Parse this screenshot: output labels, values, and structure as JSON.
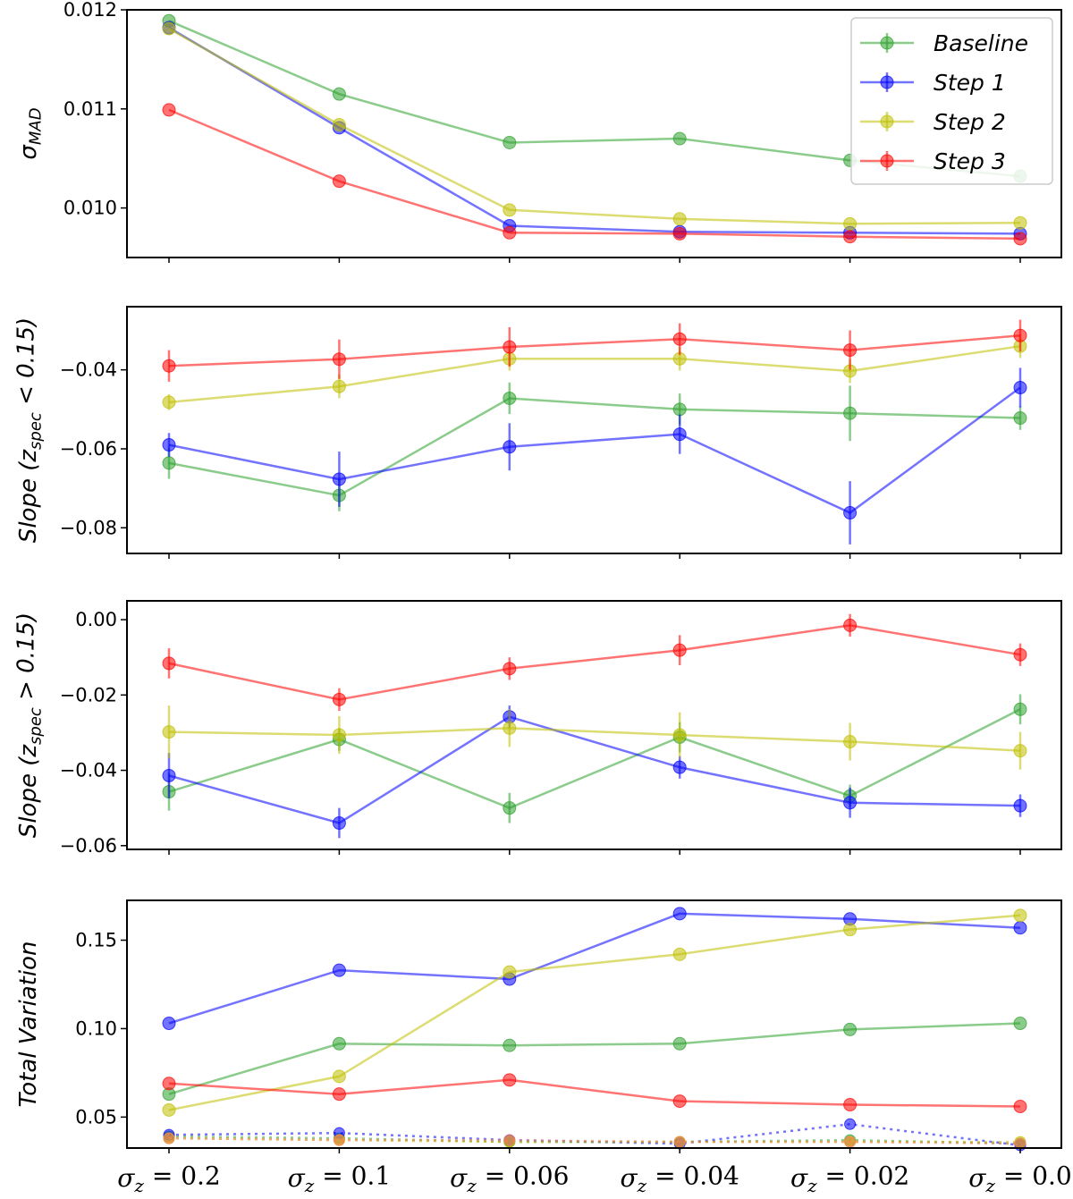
{
  "chart_data": [
    {
      "type": "line",
      "id": "sigma-mad",
      "ylabel": "σ_MAD",
      "ylim": [
        0.0095,
        0.012
      ],
      "yticks": [
        0.01,
        0.011,
        0.012
      ],
      "ytick_labels": [
        "0.010",
        "0.011",
        "0.012"
      ],
      "legend": {
        "position": "top-right",
        "entries": [
          "Baseline",
          "Step 1",
          "Step 2",
          "Step 3"
        ]
      },
      "series": [
        {
          "name": "Baseline",
          "color": "#2ca02c",
          "style": "solid",
          "values": [
            0.01189,
            0.01115,
            0.01066,
            0.0107,
            0.01048,
            0.01032
          ]
        },
        {
          "name": "Step 1",
          "color": "#0000ff",
          "style": "solid",
          "values": [
            0.01182,
            0.01081,
            0.00982,
            0.00976,
            0.00975,
            0.00974
          ]
        },
        {
          "name": "Step 2",
          "color": "#bfbf00",
          "style": "solid",
          "values": [
            0.01181,
            0.01084,
            0.00998,
            0.00989,
            0.00984,
            0.00985
          ]
        },
        {
          "name": "Step 3",
          "color": "#ff0000",
          "style": "solid",
          "values": [
            0.01099,
            0.01027,
            0.00975,
            0.00974,
            0.00971,
            0.00969
          ]
        }
      ]
    },
    {
      "type": "line",
      "id": "slope-low",
      "ylabel": "Slope (z_spec < 0.15)",
      "ylim": [
        -0.0865,
        -0.024
      ],
      "yticks": [
        -0.08,
        -0.06,
        -0.04
      ],
      "ytick_labels": [
        "−0.08",
        "−0.06",
        "−0.04"
      ],
      "series": [
        {
          "name": "Baseline",
          "color": "#2ca02c",
          "style": "solid",
          "values": [
            -0.0636,
            -0.0718,
            -0.0472,
            -0.05,
            -0.051,
            -0.0522
          ],
          "errors": [
            0.004,
            0.004,
            0.004,
            0.004,
            0.007,
            0.003
          ]
        },
        {
          "name": "Step 1",
          "color": "#0000ff",
          "style": "solid",
          "values": [
            -0.059,
            -0.0677,
            -0.0595,
            -0.0563,
            -0.0762,
            -0.0445
          ],
          "errors": [
            0.003,
            0.007,
            0.006,
            0.005,
            0.008,
            0.005
          ]
        },
        {
          "name": "Step 2",
          "color": "#bfbf00",
          "style": "solid",
          "values": [
            -0.0482,
            -0.0442,
            -0.0372,
            -0.0372,
            -0.0403,
            -0.034
          ],
          "errors": [
            0.002,
            0.003,
            0.003,
            0.003,
            0.003,
            0.003
          ]
        },
        {
          "name": "Step 3",
          "color": "#ff0000",
          "style": "solid",
          "values": [
            -0.039,
            -0.0373,
            -0.0342,
            -0.0322,
            -0.035,
            -0.0313
          ],
          "errors": [
            0.004,
            0.005,
            0.005,
            0.004,
            0.005,
            0.004
          ]
        }
      ]
    },
    {
      "type": "line",
      "id": "slope-high",
      "ylabel": "Slope (z_spec > 0.15)",
      "ylim": [
        -0.061,
        0.005
      ],
      "yticks": [
        -0.06,
        -0.04,
        -0.02,
        0.0
      ],
      "ytick_labels": [
        "−0.06",
        "−0.04",
        "−0.02",
        "0.00"
      ],
      "series": [
        {
          "name": "Baseline",
          "color": "#2ca02c",
          "style": "solid",
          "values": [
            -0.0457,
            -0.0318,
            -0.05,
            -0.0312,
            -0.0468,
            -0.0238
          ],
          "errors": [
            0.005,
            0.003,
            0.004,
            0.004,
            0.003,
            0.004
          ]
        },
        {
          "name": "Step 1",
          "color": "#0000ff",
          "style": "solid",
          "values": [
            -0.0414,
            -0.054,
            -0.0258,
            -0.0392,
            -0.0486,
            -0.0494
          ],
          "errors": [
            0.006,
            0.004,
            0.003,
            0.003,
            0.004,
            0.003
          ]
        },
        {
          "name": "Step 2",
          "color": "#bfbf00",
          "style": "solid",
          "values": [
            -0.0298,
            -0.0306,
            -0.0288,
            -0.0306,
            -0.0324,
            -0.0348
          ],
          "errors": [
            0.007,
            0.005,
            0.005,
            0.006,
            0.005,
            0.005
          ]
        },
        {
          "name": "Step 3",
          "color": "#ff0000",
          "style": "solid",
          "values": [
            -0.0116,
            -0.0212,
            -0.013,
            -0.0081,
            -0.0015,
            -0.0093
          ],
          "errors": [
            0.004,
            0.003,
            0.003,
            0.004,
            0.003,
            0.003
          ]
        }
      ]
    },
    {
      "type": "line",
      "id": "total-variation",
      "ylabel": "Total Variation",
      "ylim": [
        0.0325,
        0.1725
      ],
      "yticks": [
        0.05,
        0.1,
        0.15
      ],
      "ytick_labels": [
        "0.05",
        "0.10",
        "0.15"
      ],
      "xtick_labels": [
        "σ_z = 0.2",
        "σ_z = 0.1",
        "σ_z = 0.06",
        "σ_z = 0.04",
        "σ_z = 0.02",
        "σ_z = 0.0"
      ],
      "series": [
        {
          "name": "Baseline",
          "color": "#2ca02c",
          "style": "solid",
          "values": [
            0.063,
            0.0915,
            0.0905,
            0.0915,
            0.0995,
            0.103
          ]
        },
        {
          "name": "Step 1",
          "color": "#0000ff",
          "style": "solid",
          "values": [
            0.103,
            0.133,
            0.128,
            0.165,
            0.162,
            0.157
          ]
        },
        {
          "name": "Step 2",
          "color": "#bfbf00",
          "style": "solid",
          "values": [
            0.054,
            0.073,
            0.132,
            0.142,
            0.156,
            0.164
          ]
        },
        {
          "name": "Step 3",
          "color": "#ff0000",
          "style": "solid",
          "values": [
            0.069,
            0.063,
            0.071,
            0.059,
            0.057,
            0.056
          ]
        },
        {
          "name": "Baseline (dotted)",
          "color": "#2ca02c",
          "style": "dotted",
          "values": [
            0.039,
            0.038,
            0.036,
            0.036,
            0.037,
            0.035
          ]
        },
        {
          "name": "Step 1 (dotted)",
          "color": "#0000ff",
          "style": "dotted",
          "values": [
            0.04,
            0.041,
            0.037,
            0.035,
            0.046,
            0.034
          ]
        },
        {
          "name": "Step 2 (dotted)",
          "color": "#bfbf00",
          "style": "dotted",
          "values": [
            0.038,
            0.037,
            0.036,
            0.036,
            0.036,
            0.036
          ]
        },
        {
          "name": "Step 3 (dotted)",
          "color": "#ff7f50",
          "style": "dotted",
          "values": [
            0.038,
            0.037,
            0.037,
            0.036,
            0.036,
            0.035
          ]
        }
      ]
    }
  ]
}
